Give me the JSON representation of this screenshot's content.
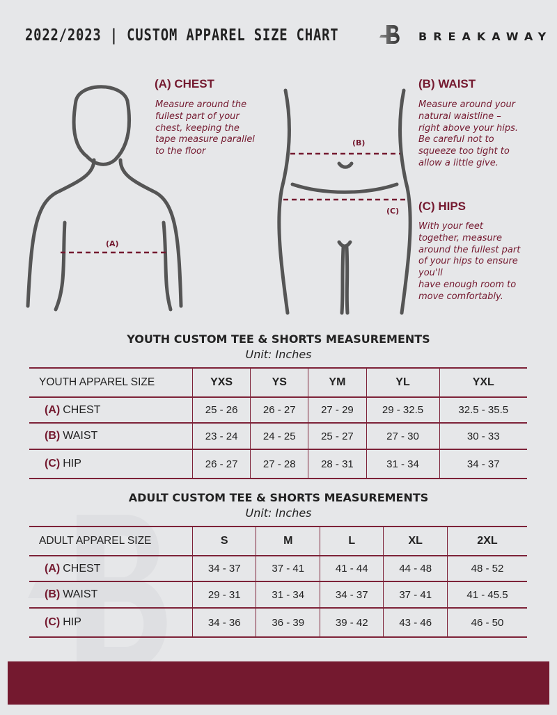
{
  "header": {
    "title": "2022/2023  |  CUSTOM APPAREL SIZE CHART",
    "brand": "BREAKAWAY"
  },
  "guides": {
    "chest": {
      "heading": "(A) CHEST",
      "text": [
        "Measure around the",
        "fullest part of your",
        "chest, keeping the",
        "tape measure parallel",
        "to the floor"
      ],
      "marker": "(A)"
    },
    "waist": {
      "heading": "(B) WAIST",
      "text": [
        "Measure around your",
        "natural waistline –",
        "right above your hips.",
        "Be careful not to",
        "squeeze too tight to",
        "allow a little give."
      ],
      "marker": "(B)"
    },
    "hips": {
      "heading": "(C) HIPS",
      "text": [
        "With your feet",
        "together, measure",
        "around the fullest part",
        "of your hips to ensure",
        "you'll",
        "have enough room to",
        "move comfortably."
      ],
      "marker": "(C)"
    }
  },
  "youth": {
    "title": "YOUTH CUSTOM TEE & SHORTS MEASUREMENTS",
    "unit": "Unit: Inches",
    "size_label": "YOUTH APPAREL SIZE",
    "sizes": [
      "YXS",
      "YS",
      "YM",
      "YL",
      "YXL"
    ],
    "rows": [
      {
        "code": "(A)",
        "name": "CHEST",
        "values": [
          "25 - 26",
          "26 - 27",
          "27 - 29",
          "29 - 32.5",
          "32.5 - 35.5"
        ]
      },
      {
        "code": "(B)",
        "name": "WAIST",
        "values": [
          "23 - 24",
          "24 - 25",
          "25 - 27",
          "27 - 30",
          "30 - 33"
        ]
      },
      {
        "code": "(C)",
        "name": "HIP",
        "values": [
          "26 - 27",
          "27 - 28",
          "28 - 31",
          "31 - 34",
          "34 - 37"
        ]
      }
    ]
  },
  "adult": {
    "title": "ADULT CUSTOM TEE & SHORTS MEASUREMENTS",
    "unit": "Unit: Inches",
    "size_label": "ADULT APPAREL SIZE",
    "sizes": [
      "S",
      "M",
      "L",
      "XL",
      "2XL"
    ],
    "rows": [
      {
        "code": "(A)",
        "name": "CHEST",
        "values": [
          "34 - 37",
          "37 - 41",
          "41 - 44",
          "44 - 48",
          "48 - 52"
        ]
      },
      {
        "code": "(B)",
        "name": "WAIST",
        "values": [
          "29 - 31",
          "31 - 34",
          "34 - 37",
          "37 - 41",
          "41 - 45.5"
        ]
      },
      {
        "code": "(C)",
        "name": "HIP",
        "values": [
          "34 - 36",
          "36 - 39",
          "39 - 42",
          "43 - 46",
          "46 - 50"
        ]
      }
    ]
  },
  "colors": {
    "accent": "#74192f",
    "background": "#e6e7e9",
    "figure": "#555555"
  }
}
